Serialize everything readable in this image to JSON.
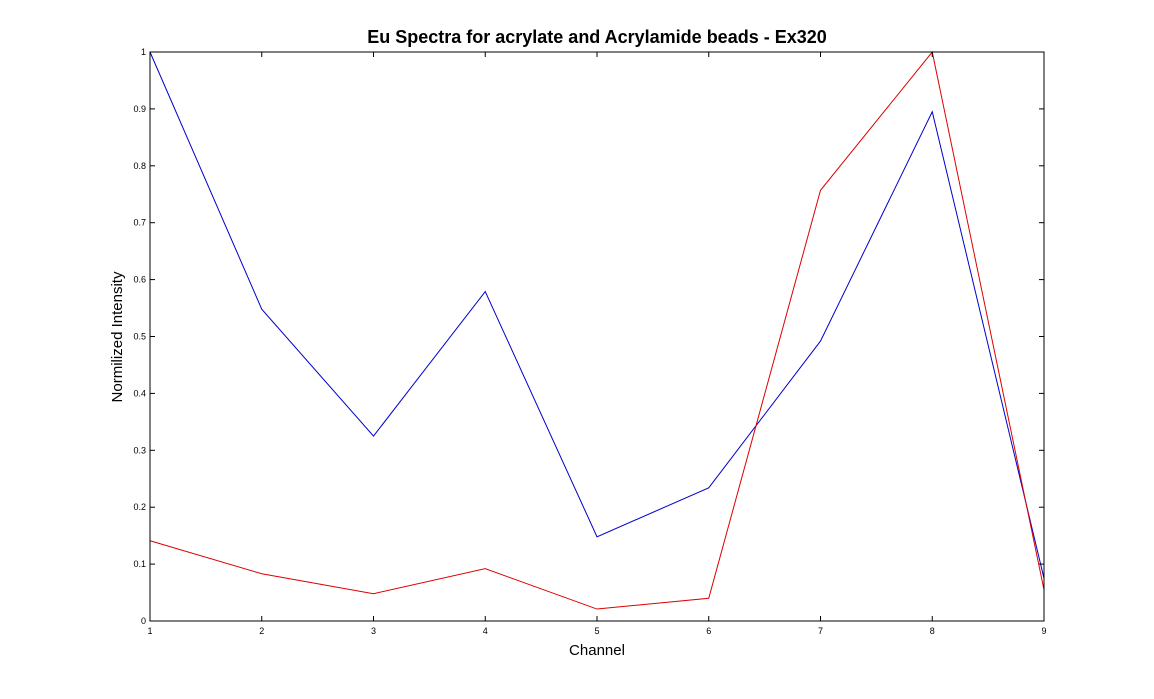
{
  "chart_data": {
    "type": "line",
    "title": "Eu Spectra for acrylate and Acrylamide beads - Ex320",
    "xlabel": "Channel",
    "ylabel": "Normilized Intensity",
    "xlim": [
      1,
      9
    ],
    "ylim": [
      0,
      1
    ],
    "grid": false,
    "x": [
      1,
      2,
      3,
      4,
      5,
      6,
      7,
      8,
      9
    ],
    "x_ticks": [
      "1",
      "2",
      "3",
      "4",
      "5",
      "6",
      "7",
      "8",
      "9"
    ],
    "y_ticks": [
      "0",
      "0.1",
      "0.2",
      "0.3",
      "0.4",
      "0.5",
      "0.6",
      "0.7",
      "0.8",
      "0.9",
      "1"
    ],
    "series": [
      {
        "color": "#0000cc",
        "values": [
          1.0,
          0.548,
          0.325,
          0.579,
          0.148,
          0.234,
          0.492,
          0.895,
          0.075
        ]
      },
      {
        "color": "#dd0000",
        "values": [
          0.141,
          0.083,
          0.048,
          0.092,
          0.021,
          0.04,
          0.757,
          1.0,
          0.055
        ]
      }
    ]
  }
}
